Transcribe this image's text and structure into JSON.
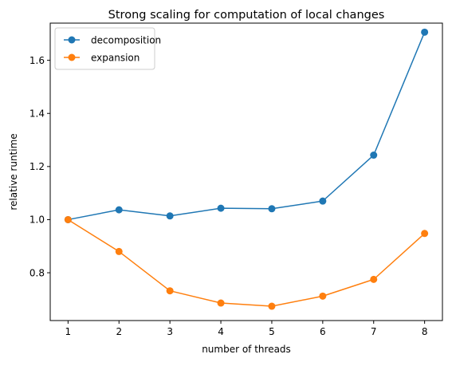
{
  "chart_data": {
    "type": "line",
    "title": "Strong scaling for computation of local changes",
    "xlabel": "number of threads",
    "ylabel": "relative runtime",
    "x": [
      1,
      2,
      3,
      4,
      5,
      6,
      7,
      8
    ],
    "xticks": [
      "1",
      "2",
      "3",
      "4",
      "5",
      "6",
      "7",
      "8"
    ],
    "yticks": [
      "0.8",
      "1.0",
      "1.2",
      "1.4",
      "1.6"
    ],
    "xlim": [
      0.65,
      8.35
    ],
    "ylim": [
      0.62,
      1.74
    ],
    "grid": false,
    "legend_position": "top-left",
    "series": [
      {
        "name": "decomposition",
        "color": "#1f77b4",
        "values": [
          1.0,
          1.037,
          1.014,
          1.043,
          1.041,
          1.07,
          1.243,
          1.706
        ]
      },
      {
        "name": "expansion",
        "color": "#ff7f0e",
        "values": [
          1.0,
          0.88,
          0.732,
          0.686,
          0.674,
          0.712,
          0.775,
          0.948
        ]
      }
    ]
  }
}
